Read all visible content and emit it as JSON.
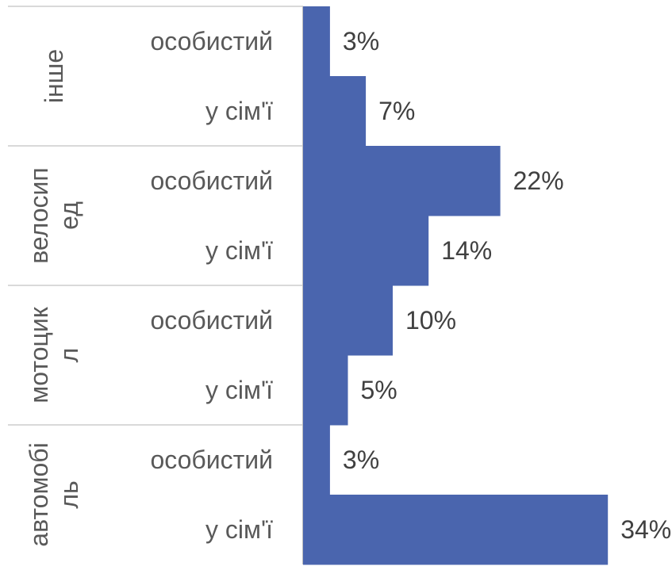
{
  "chart_data": {
    "type": "bar",
    "orientation": "horizontal",
    "groups": [
      {
        "label": "інше",
        "label_lines": [
          "інше"
        ],
        "items": [
          {
            "label": "особистий",
            "value": 3,
            "value_label": "3%"
          },
          {
            "label": "у сім'ї",
            "value": 7,
            "value_label": "7%"
          }
        ]
      },
      {
        "label": "велосипед",
        "label_lines": [
          "велосип",
          "ед"
        ],
        "items": [
          {
            "label": "особистий",
            "value": 22,
            "value_label": "22%"
          },
          {
            "label": "у сім'ї",
            "value": 14,
            "value_label": "14%"
          }
        ]
      },
      {
        "label": "мотоцикл",
        "label_lines": [
          "мотоцик",
          "л"
        ],
        "items": [
          {
            "label": "особистий",
            "value": 10,
            "value_label": "10%"
          },
          {
            "label": "у сім'ї",
            "value": 5,
            "value_label": "5%"
          }
        ]
      },
      {
        "label": "автомобіль",
        "label_lines": [
          "автомобі",
          "ль"
        ],
        "items": [
          {
            "label": "особистий",
            "value": 3,
            "value_label": "3%"
          },
          {
            "label": "у сім'ї",
            "value": 34,
            "value_label": "34%"
          }
        ]
      }
    ],
    "bar_gap": 0,
    "colors": {
      "bar": "#4a65ae",
      "grid": "#d9d9d9",
      "axis": "#bfbfbf"
    }
  }
}
